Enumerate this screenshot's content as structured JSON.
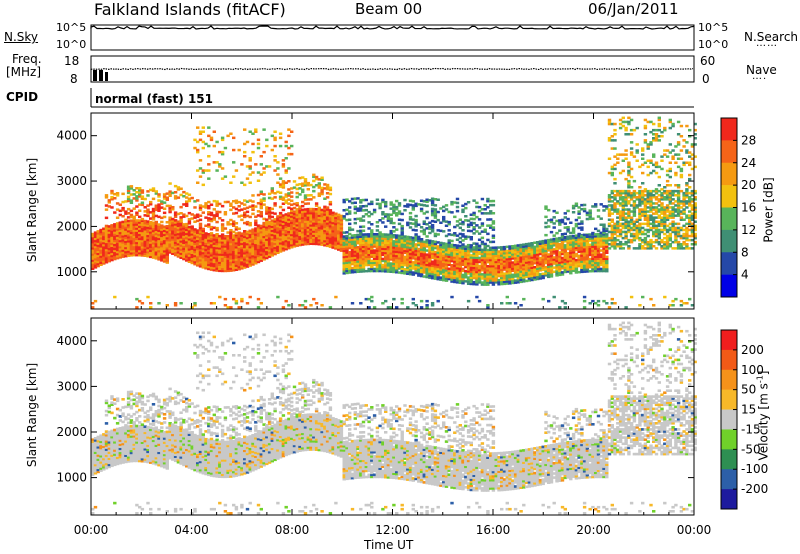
{
  "header": {
    "station": "Falkland Islands (fitACF)",
    "beam": "Beam 00",
    "date": "06/Jan/2011"
  },
  "panels": {
    "nsky_label": "N.Sky",
    "nsearch_label": "N.Search",
    "freq_label_1": "Freq.",
    "freq_label_2": "[MHz]",
    "nave_label": "Nave",
    "cpid_label": "CPID",
    "cpid_value": "normal (fast) 151",
    "left_ticks_top": [
      "10^5",
      "10^0"
    ],
    "right_ticks_top": [
      "10^5",
      "10^0"
    ],
    "freq_ticks": [
      "18",
      "8"
    ],
    "nave_ticks": [
      "60",
      "0"
    ]
  },
  "colors": {
    "power": [
      "#0000e6",
      "#2548a8",
      "#3f8f74",
      "#58b45a",
      "#f2c10f",
      "#f59a11",
      "#f56418",
      "#f0281c"
    ],
    "velocity": [
      "#f01e1e",
      "#f25a17",
      "#f5921a",
      "#f7b829",
      "#c8c8c8",
      "#70d12a",
      "#2e8f52",
      "#2c5fa8",
      "#1d1a9e"
    ]
  },
  "chart_data": [
    {
      "type": "heatmap",
      "name": "power",
      "xlabel": "Time UT",
      "ylabel": "Slant Range [km]",
      "x_ticks": [
        "00:00",
        "04:00",
        "08:00",
        "12:00",
        "16:00",
        "20:00",
        "00:00"
      ],
      "x_range_hours": [
        0,
        24
      ],
      "y_ticks": [
        1000,
        2000,
        3000,
        4000
      ],
      "y_range": [
        180,
        4500
      ],
      "colorbar_label": "Power [dB]",
      "colorbar_ticks": [
        "4",
        "8",
        "12",
        "16",
        "20",
        "24",
        "28"
      ],
      "colorbar_range": [
        0,
        32
      ]
    },
    {
      "type": "heatmap",
      "name": "velocity",
      "xlabel": "Time UT",
      "ylabel": "Slant Range [km]",
      "x_ticks": [
        "00:00",
        "04:00",
        "08:00",
        "12:00",
        "16:00",
        "20:00",
        "00:00"
      ],
      "x_range_hours": [
        0,
        24
      ],
      "y_ticks": [
        1000,
        2000,
        3000,
        4000
      ],
      "y_range": [
        180,
        4500
      ],
      "colorbar_label": "Velocity [m s",
      "colorbar_label_sup": "-1",
      "colorbar_label_end": "]",
      "colorbar_ticks": [
        "200",
        "100",
        "50",
        "15",
        "-15",
        "-50",
        "-100",
        "-200"
      ],
      "colorbar_range": [
        -250,
        250
      ]
    }
  ]
}
